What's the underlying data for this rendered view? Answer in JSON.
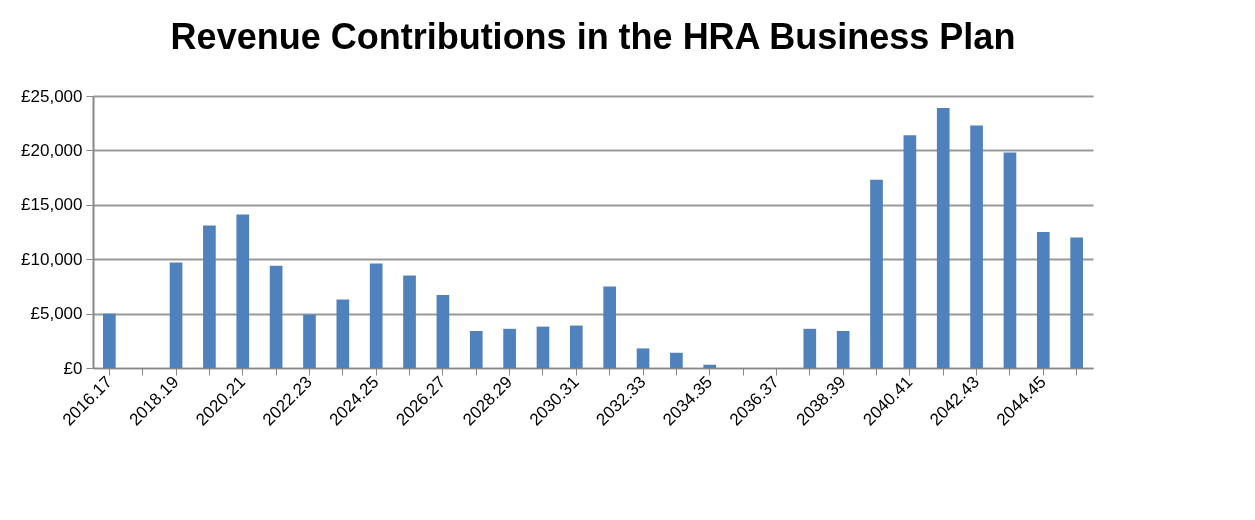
{
  "chart_data": {
    "type": "bar",
    "title": "Revenue Contributions in the HRA Business Plan",
    "categories": [
      "2016.17",
      null,
      "2018.19",
      null,
      "2020.21",
      null,
      "2022.23",
      null,
      "2024.25",
      null,
      "2026.27",
      null,
      "2028.29",
      null,
      "2030.31",
      null,
      "2032.33",
      null,
      "2034.35",
      null,
      "2036.37",
      null,
      "2038.39",
      null,
      "2040.41",
      null,
      "2042.43",
      null,
      "2044.45",
      null
    ],
    "values": [
      5000,
      0,
      9700,
      13100,
      14100,
      9400,
      4900,
      6300,
      9600,
      8500,
      6700,
      3400,
      3600,
      3800,
      3900,
      7500,
      1800,
      1400,
      300,
      0,
      0,
      3600,
      3400,
      17300,
      21400,
      23900,
      22300,
      19800,
      12500,
      12000
    ],
    "color": "#4f81bd",
    "ylim": [
      0,
      25000
    ],
    "yticks": [
      {
        "value": 0,
        "label": "£0"
      },
      {
        "value": 5000,
        "label": "£5,000"
      },
      {
        "value": 10000,
        "label": "£10,000"
      },
      {
        "value": 15000,
        "label": "£15,000"
      },
      {
        "value": 20000,
        "label": "£20,000"
      },
      {
        "value": 25000,
        "label": "£25,000"
      }
    ],
    "grid": "y"
  }
}
